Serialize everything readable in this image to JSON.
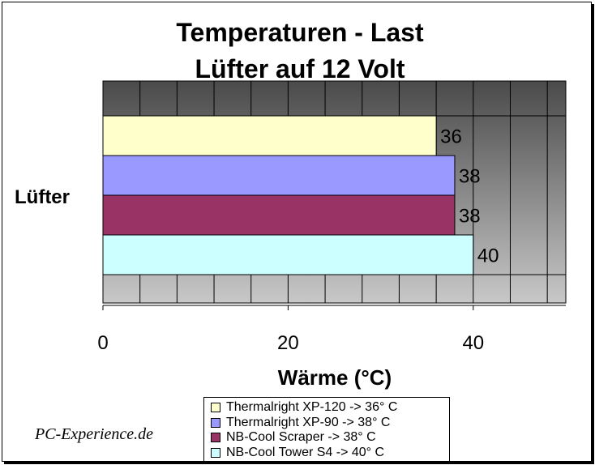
{
  "chart_data": {
    "type": "bar",
    "orientation": "horizontal",
    "title_lines": [
      "Temperaturen - Last",
      "Lüfter auf 12 Volt"
    ],
    "category": "Lüfter",
    "xlabel": "Wärme (°C)",
    "xlim": [
      0,
      50
    ],
    "xticks": [
      "0",
      "20",
      "40"
    ],
    "grid": true,
    "legend_position": "bottom",
    "series": [
      {
        "name": "Thermalright XP-120 -> 36° C",
        "value": 36,
        "label": "36",
        "color": "#FFFFCC"
      },
      {
        "name": "Thermalright XP-90 -> 38° C",
        "value": 38,
        "label": "38",
        "color": "#9999FF"
      },
      {
        "name": "NB-Cool Scraper -> 38° C",
        "value": 38,
        "label": "38",
        "color": "#993366"
      },
      {
        "name": "NB-Cool Tower S4 -> 40° C",
        "value": 40,
        "label": "40",
        "color": "#CCFFFF"
      }
    ]
  },
  "watermark": "PC-Experience.de"
}
